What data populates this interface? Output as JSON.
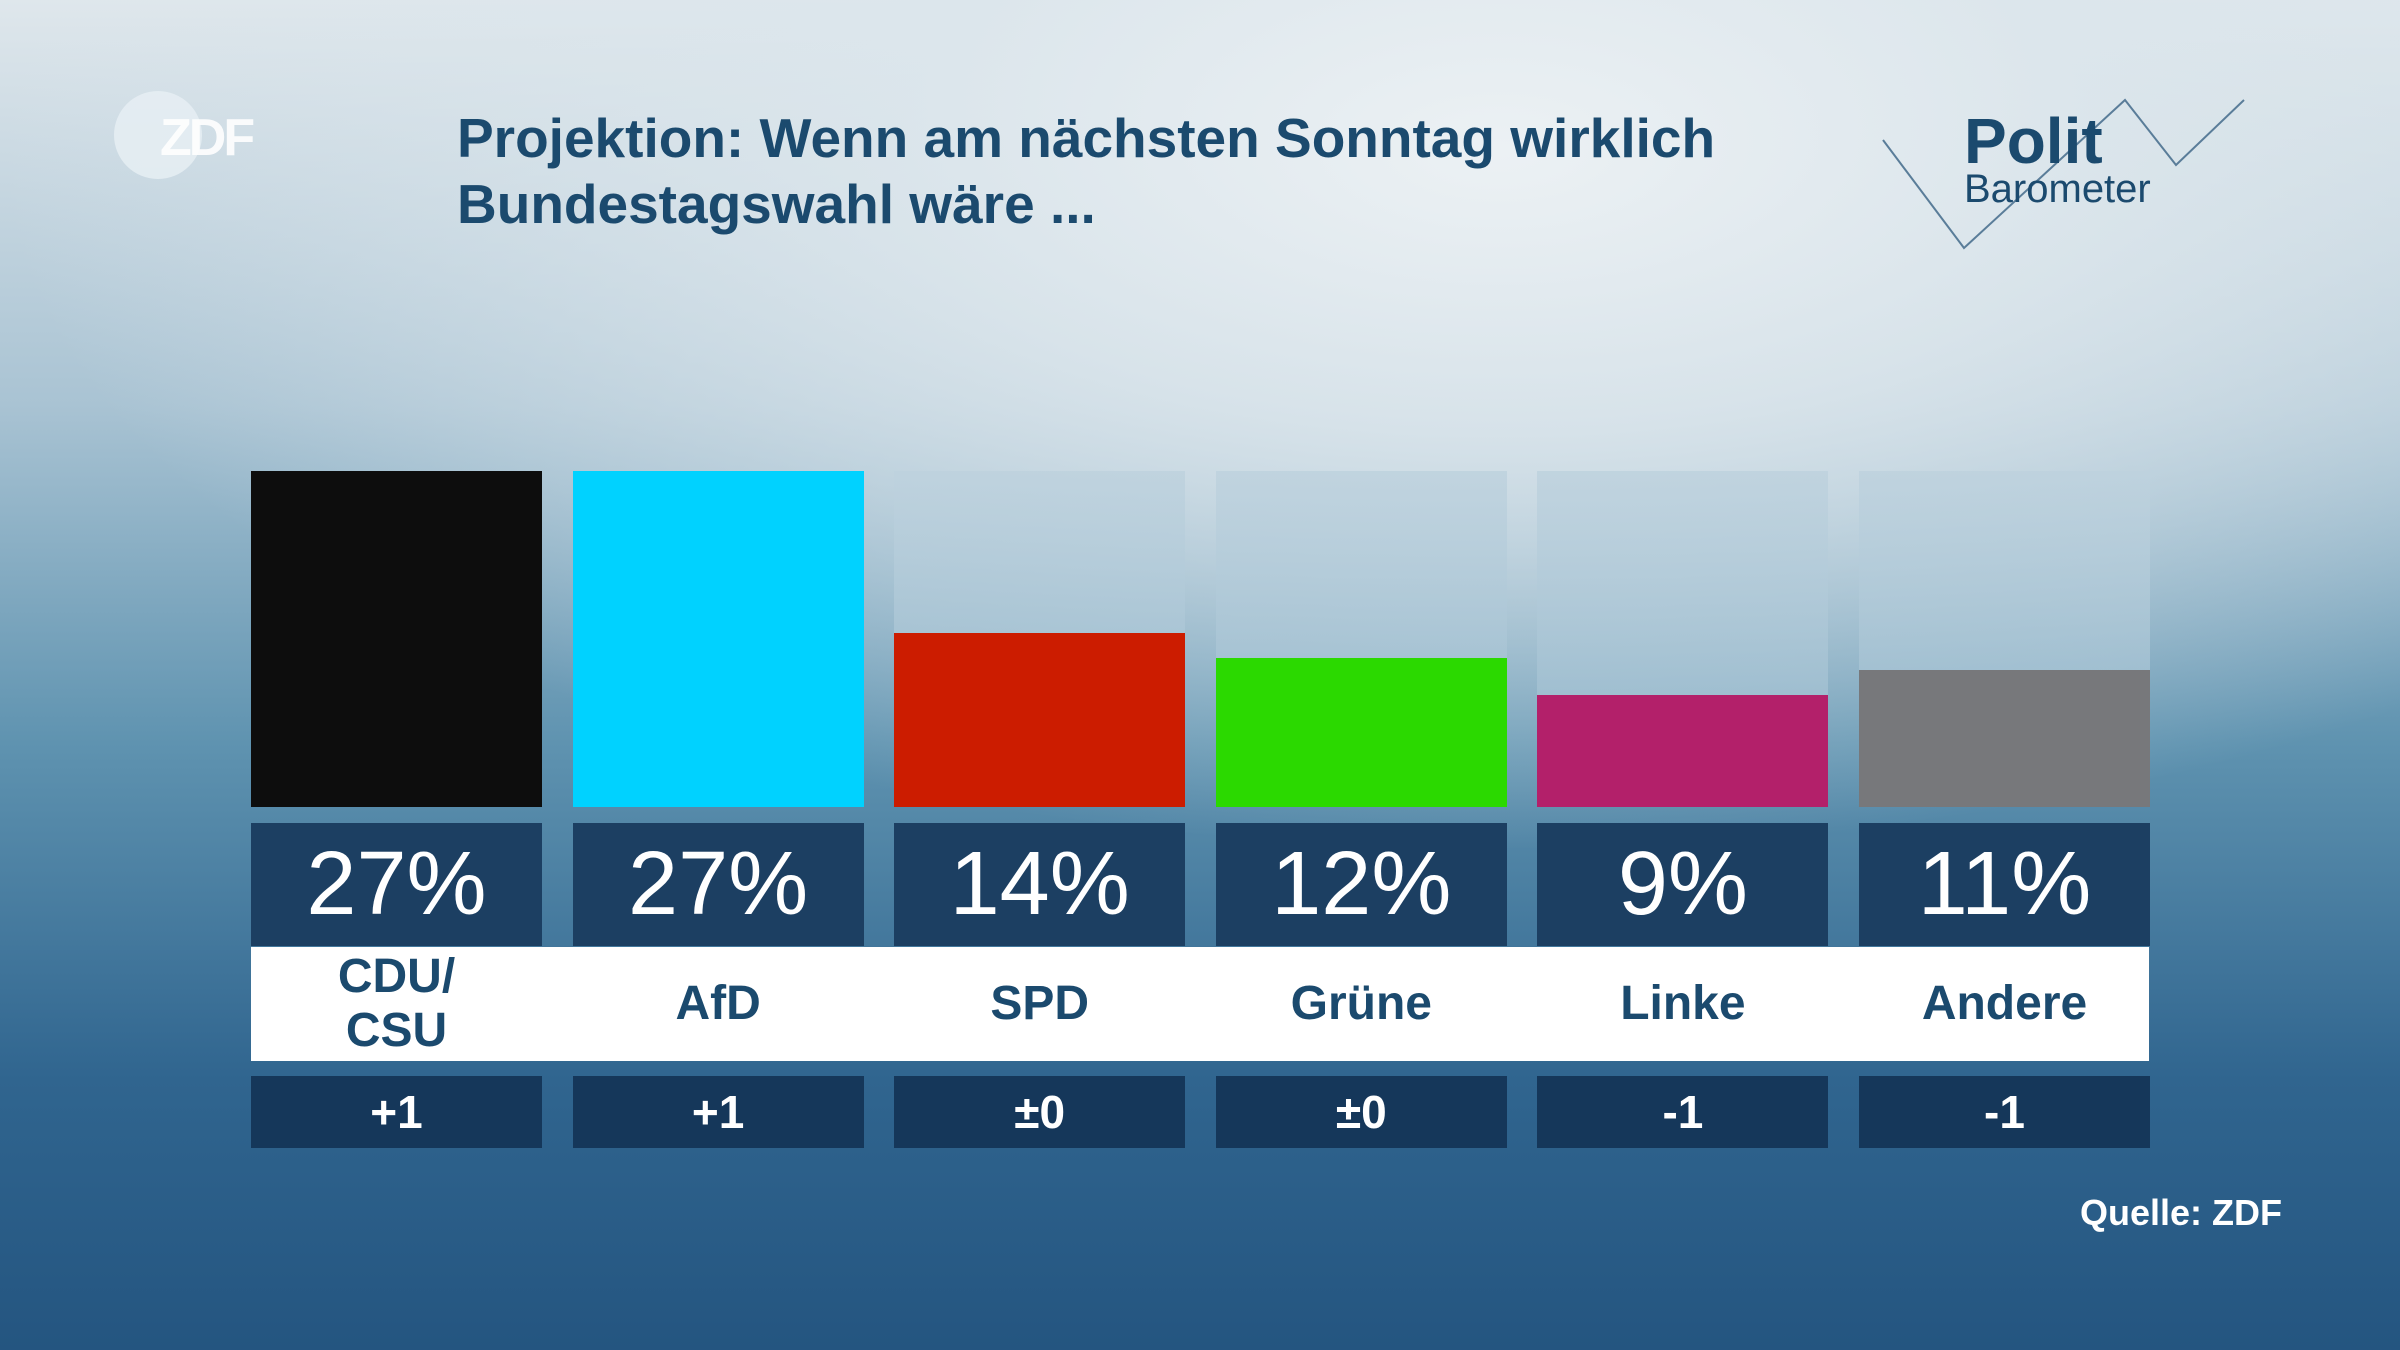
{
  "brand": {
    "logo_text": "ZDF",
    "polit_logo_line1": "Polit",
    "polit_logo_line2": "Barometer"
  },
  "title_line1": "Projektion: Wenn am nächsten Sonntag wirklich",
  "title_line2": "Bundestagswahl wäre ...",
  "source": "Quelle: ZDF",
  "chart_data": {
    "type": "bar",
    "title": "Projektion: Wenn am nächsten Sonntag wirklich Bundestagswahl wäre ...",
    "categories": [
      "CDU/\nCSU",
      "AfD",
      "SPD",
      "Grüne",
      "Linke",
      "Andere"
    ],
    "values": [
      27,
      27,
      14,
      12,
      9,
      11
    ],
    "value_labels": [
      "27%",
      "27%",
      "14%",
      "12%",
      "9%",
      "11%"
    ],
    "changes": [
      "+1",
      "+1",
      "±0",
      "±0",
      "-1",
      "-1"
    ],
    "colors": [
      "#0d0d0d",
      "#00d2ff",
      "#cc1c00",
      "#2bd900",
      "#b3206a",
      "#77787b"
    ],
    "ylim": [
      0,
      27
    ],
    "grid": false
  }
}
